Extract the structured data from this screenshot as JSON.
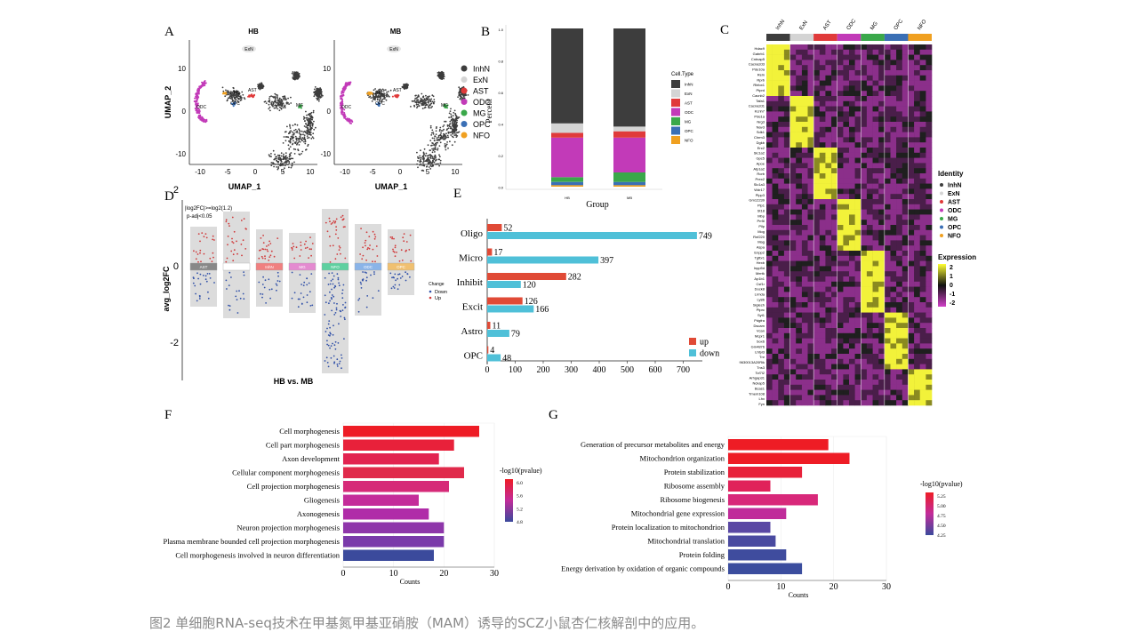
{
  "caption": "图2 单细胞RNA-seq技术在甲基氮甲基亚硝胺（MAM）诱导的SCZ小鼠杏仁核解剖中的应用。",
  "colors": {
    "InhN": "#3d3d3d",
    "ExN": "#d4d4d4",
    "AST": "#e03a3a",
    "ODC": "#c23ab8",
    "MG": "#3aa84a",
    "OPC": "#3a6fb5",
    "NFO": "#f0a020"
  },
  "panelA": {
    "letter": "A",
    "plots": [
      {
        "title": "HB"
      },
      {
        "title": "MB"
      }
    ],
    "xlabel": "UMAP_1",
    "ylabel": "UMAP_2",
    "xticks": [
      "-10",
      "-5",
      "0",
      "5",
      "10"
    ],
    "yticks": [
      "10",
      "0",
      "-10"
    ],
    "cluster_labels": [
      "ExN",
      "NFO",
      "AST",
      "ODC",
      "OPC",
      "MG"
    ],
    "legend": [
      "InhN",
      "ExN",
      "AST",
      "ODC",
      "MG",
      "OPC",
      "NFO"
    ]
  },
  "panelB": {
    "letter": "B",
    "ylabel": "Percent",
    "xlabel": "Group",
    "yticks": [
      "1.0",
      "0.8",
      "0.6",
      "0.4",
      "0.2",
      "0.0"
    ],
    "groups": [
      "HB",
      "MB"
    ],
    "legend_title": "Cell.Type",
    "legend": [
      "InhN",
      "ExN",
      "AST",
      "ODC",
      "MG",
      "OPC",
      "NFO"
    ]
  },
  "panelC": {
    "letter": "C",
    "top_labels": [
      "InhN",
      "ExN",
      "AST",
      "ODC",
      "MG",
      "OPC",
      "NFO"
    ],
    "genes": [
      "Hdac9",
      "Gabrb1",
      "Cntnap5",
      "Cacna2d3",
      "Pde10a",
      "Reln",
      "Rprb",
      "Rbfox1",
      "Ptprd",
      "Cacnb2",
      "Tafa1",
      "Cacna2d1",
      "Kcnh7",
      "Pde1a",
      "Nrg3",
      "Nav3",
      "Sdk1",
      "Chrm3",
      "Dgkb",
      "Erc2",
      "Slc1a2",
      "Gpc5",
      "Apoe",
      "Atp1a2",
      "Rorb",
      "Prex2",
      "Slc1a3",
      "Wdr17",
      "Plpp3",
      "Gm12239",
      "Plp1",
      "St18",
      "Mbp",
      "Prr5l",
      "Pllp",
      "Mog",
      "Rnf220",
      "Mag",
      "Aspa",
      "Enpp2",
      "Tgfbr1",
      "Hexb",
      "Inpp5d",
      "Mertk",
      "Ap1b1",
      "Csf1r",
      "Dock8",
      "Lrmda",
      "Ly86",
      "Siglech",
      "Ptprc",
      "Syt1",
      "Pdgfra",
      "Dscam",
      "Vcan",
      "Mcpr1",
      "Sox6",
      "Gm4876",
      "Lhfpl3",
      "Tnr",
      "9630013A20Rik",
      "Tns3",
      "Tcf7l2",
      "Arhgap31",
      "Nckap5",
      "Bcas1",
      "Tmem108",
      "Lhx",
      "Fyn"
    ],
    "identity_title": "Identity",
    "identity": [
      "InhN",
      "ExN",
      "AST",
      "ODC",
      "MG",
      "OPC",
      "NFO"
    ],
    "expression_title": "Expression",
    "expression_ticks": [
      "2",
      "1",
      "0",
      "-1",
      "-2"
    ]
  },
  "panelD": {
    "letter": "D",
    "note1": "|log2FC|>=log2(1.2)",
    "note2": "p-adj<0.05",
    "ylabel": "avg_log2FC",
    "xlabel": "HB vs. MB",
    "yticks": [
      "2",
      "0",
      "-2"
    ],
    "groups": [
      "AST",
      "ExN",
      "InhN",
      "MG",
      "NFO",
      "ODC",
      "OPC"
    ],
    "legend_title": "Change",
    "legend": [
      "Down",
      "Up"
    ]
  },
  "panelE": {
    "letter": "E",
    "chart_data": {
      "type": "bar",
      "categories": [
        "Oligo",
        "Micro",
        "Inhibit",
        "Excit",
        "Astro",
        "OPC"
      ],
      "series": [
        {
          "name": "up",
          "values": [
            52,
            17,
            282,
            126,
            11,
            4
          ],
          "color": "#e04a36"
        },
        {
          "name": "down",
          "values": [
            749,
            397,
            120,
            166,
            79,
            48
          ],
          "color": "#4fc0d8"
        }
      ],
      "xticks": [
        "0",
        "100",
        "200",
        "300",
        "400",
        "500",
        "600",
        "700"
      ],
      "xlim": [
        0,
        800
      ]
    }
  },
  "panelF": {
    "letter": "F",
    "chart_data": {
      "type": "bar",
      "categories": [
        "Cell morphogenesis",
        "Cell part morphogenesis",
        "Axon development",
        "Cellular component morphogenesis",
        "Cell projection morphogenesis",
        "Gliogenesis",
        "Axonogenesis",
        "Neuron projection morphogenesis",
        "Plasma membrane bounded cell projection morphogenesis",
        "Cell morphogenesis involved in neuron differentiation"
      ],
      "values": [
        27,
        22,
        19,
        24,
        21,
        15,
        17,
        20,
        20,
        18
      ],
      "colors": [
        "#ee1c25",
        "#e8213a",
        "#e22350",
        "#e02a4b",
        "#d62a78",
        "#c42c9a",
        "#b02ca8",
        "#8e36aa",
        "#7a3aaa",
        "#3b4a9c"
      ],
      "xlabel": "Counts",
      "xticks": [
        "0",
        "10",
        "20",
        "30"
      ],
      "xlim": [
        0,
        30
      ],
      "legend_title": "-log10(pvalue)",
      "legend_ticks": [
        "6.0",
        "5.6",
        "5.2",
        "4.8"
      ]
    }
  },
  "panelG": {
    "letter": "G",
    "chart_data": {
      "type": "bar",
      "categories": [
        "Generation of precursor metabolites and energy",
        "Mitochondrion organization",
        "Protein stabilization",
        "Ribosome assembly",
        "Ribosome biogenesis",
        "Mitochondrial gene expression",
        "Protein localization to mitochondrion",
        "Mitochondrial translation",
        "Protein folding",
        "Energy derivation by oxidation of organic compounds"
      ],
      "values": [
        19,
        23,
        14,
        8,
        17,
        11,
        8,
        9,
        11,
        14
      ],
      "colors": [
        "#ee1c25",
        "#ee1c25",
        "#e8213a",
        "#e0225a",
        "#d8287a",
        "#c02c9a",
        "#5a48a4",
        "#4a4aa0",
        "#3f4c9e",
        "#3b4d9e"
      ],
      "xlabel": "Counts",
      "xticks": [
        "0",
        "10",
        "20",
        "30"
      ],
      "xlim": [
        0,
        30
      ],
      "legend_title": "-log10(pvalue)",
      "legend_ticks": [
        "5.25",
        "5.00",
        "4.75",
        "4.50",
        "4.25"
      ]
    }
  }
}
